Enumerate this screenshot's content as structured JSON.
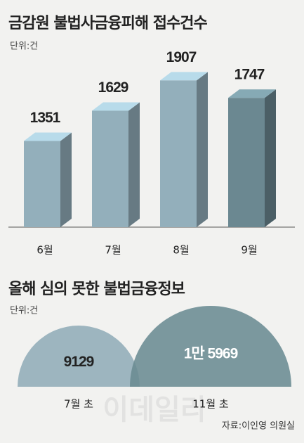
{
  "chart_data": [
    {
      "type": "bar",
      "title": "금감원 불법사금융피해 접수건수",
      "subtitle": "단위:건",
      "categories": [
        "6월",
        "7월",
        "8월",
        "9월"
      ],
      "values": [
        1351,
        1629,
        1907,
        1747
      ],
      "colors": [
        "#93afbb",
        "#93afbb",
        "#93afbb",
        "#6b8891"
      ],
      "ylim": [
        560,
        2000
      ]
    },
    {
      "type": "semicircle",
      "title": "올해 심의 못한 불법금융정보",
      "subtitle": "단위:건",
      "categories": [
        "7월 초",
        "11월 초"
      ],
      "values": [
        9129,
        15969
      ],
      "value_labels": [
        "9129",
        "1만 5969"
      ],
      "colors": [
        "#9db5bf",
        "#6a8b92"
      ]
    }
  ],
  "watermark": "이데일리",
  "source": "자료:이인영 의원실"
}
